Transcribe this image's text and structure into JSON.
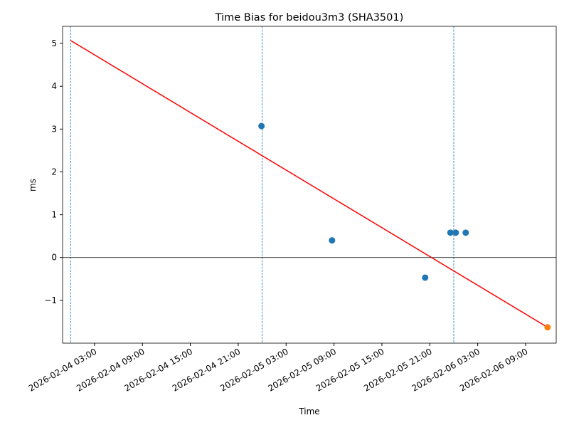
{
  "chart_data": {
    "type": "scatter",
    "title": "Time Bias for beidou3m3 (SHA3501)",
    "xlabel": "Time",
    "ylabel": "ms",
    "xlim": [
      "2026-02-03 23:00",
      "2026-02-06 12:50"
    ],
    "ylim": [
      -2.0,
      5.4
    ],
    "xticks": [
      "2026-02-04 03:00",
      "2026-02-04 09:00",
      "2026-02-04 15:00",
      "2026-02-04 21:00",
      "2026-02-05 03:00",
      "2026-02-05 09:00",
      "2026-02-05 15:00",
      "2026-02-05 21:00",
      "2026-02-06 03:00",
      "2026-02-06 09:00"
    ],
    "yticks": [
      {
        "value": -1,
        "label": "−1"
      },
      0,
      1,
      2,
      3,
      4,
      5
    ],
    "hline": 0,
    "vlines": [
      "2026-02-04 00:00",
      "2026-02-05 00:00",
      "2026-02-06 00:00"
    ],
    "vline_color": "#1f77b4",
    "points": {
      "color": "#1f77b4",
      "x": [
        "2026-02-04 23:55",
        "2026-02-05 08:45",
        "2026-02-05 20:25",
        "2026-02-05 23:35",
        "2026-02-06 00:15",
        "2026-02-06 01:30"
      ],
      "values": [
        3.07,
        0.4,
        -0.47,
        0.58,
        0.58,
        0.58
      ]
    },
    "fit": {
      "color": "#ff0000",
      "x": [
        "2026-02-04 00:00",
        "2026-02-06 11:45"
      ],
      "values": [
        5.07,
        -1.63
      ]
    },
    "prediction": {
      "color": "#ff7f0e",
      "x": [
        "2026-02-06 11:45"
      ],
      "values": [
        -1.63
      ]
    }
  }
}
